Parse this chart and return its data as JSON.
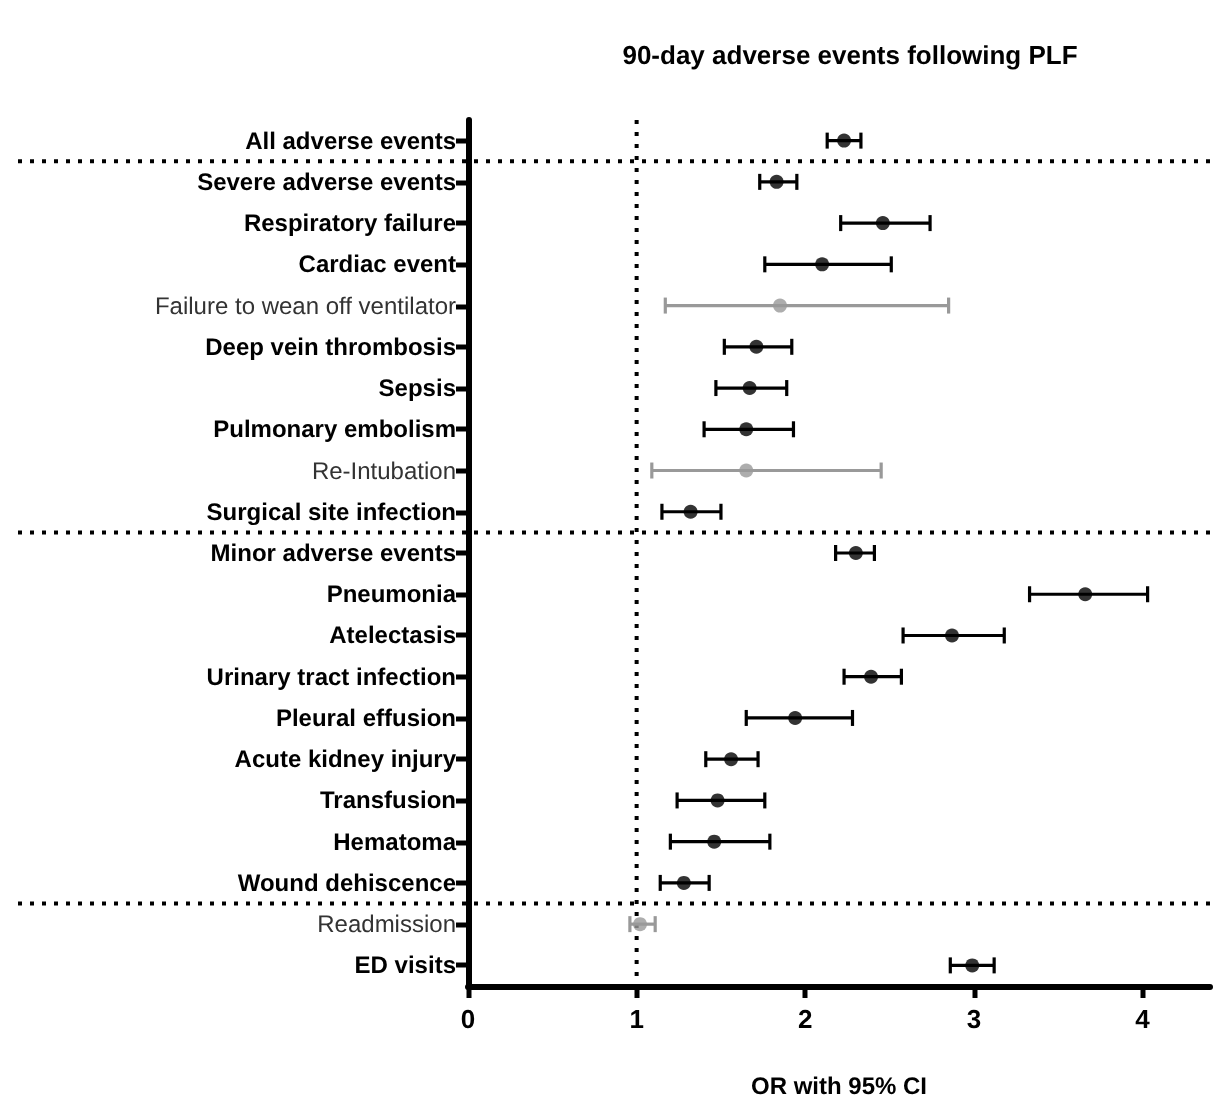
{
  "chart_data": {
    "type": "scatter",
    "orientation": "horizontal",
    "title": "90-day adverse events following PLF",
    "xlabel": "OR with 95% CI",
    "categories": [
      "All adverse events",
      "Severe adverse events",
      "Respiratory failure",
      "Cardiac event",
      "Failure to wean off ventilator",
      "Deep vein thrombosis",
      "Sepsis",
      "Pulmonary embolism",
      "Re-Intubation",
      "Surgical site infection",
      "Minor adverse events",
      "Pneumonia",
      "Atelectasis",
      "Urinary tract infection",
      "Pleural effusion",
      "Acute kidney injury",
      "Transfusion",
      "Hematoma",
      "Wound dehiscence",
      "Readmission",
      "ED visits"
    ],
    "series": [
      {
        "color": "#000000",
        "values": [
          2.23,
          1.83,
          2.46,
          2.1,
          null,
          1.71,
          1.67,
          1.65,
          null,
          1.32,
          2.3,
          3.66,
          2.87,
          2.39,
          1.94,
          1.56,
          1.48,
          1.46,
          1.28,
          null,
          2.99
        ],
        "errors": [
          [
            2.13,
            2.33
          ],
          [
            1.73,
            1.95
          ],
          [
            2.21,
            2.74
          ],
          [
            1.76,
            2.51
          ],
          null,
          [
            1.52,
            1.92
          ],
          [
            1.47,
            1.89
          ],
          [
            1.4,
            1.93
          ],
          null,
          [
            1.15,
            1.5
          ],
          [
            2.18,
            2.41
          ],
          [
            3.33,
            4.03
          ],
          [
            2.58,
            3.18
          ],
          [
            2.23,
            2.57
          ],
          [
            1.65,
            2.28
          ],
          [
            1.41,
            1.72
          ],
          [
            1.24,
            1.76
          ],
          [
            1.2,
            1.79
          ],
          [
            1.14,
            1.43
          ],
          null,
          [
            2.86,
            3.12
          ]
        ]
      },
      {
        "color": "#999999",
        "values": [
          null,
          null,
          null,
          null,
          1.85,
          null,
          null,
          null,
          1.65,
          null,
          null,
          null,
          null,
          null,
          null,
          null,
          null,
          null,
          null,
          1.02,
          null
        ],
        "errors": [
          null,
          null,
          null,
          null,
          [
            1.17,
            2.85
          ],
          null,
          null,
          null,
          [
            1.09,
            2.45
          ],
          null,
          null,
          null,
          null,
          null,
          null,
          null,
          null,
          null,
          null,
          [
            0.96,
            1.11
          ],
          null
        ]
      }
    ],
    "xlim": [
      0,
      4.4
    ],
    "xticks": [
      0,
      1,
      2,
      3,
      4
    ],
    "grid": false,
    "marker": "circle",
    "ref_lines": [
      {
        "axis": "x",
        "value": 1,
        "line_style": "dotted"
      },
      {
        "axis": "y",
        "value": "All adverse events",
        "line_style": "dotted"
      },
      {
        "axis": "y",
        "value": "Surgical site infection",
        "line_style": "dotted"
      },
      {
        "axis": "y",
        "value": "Wound dehiscence",
        "line_style": "dotted"
      }
    ]
  }
}
